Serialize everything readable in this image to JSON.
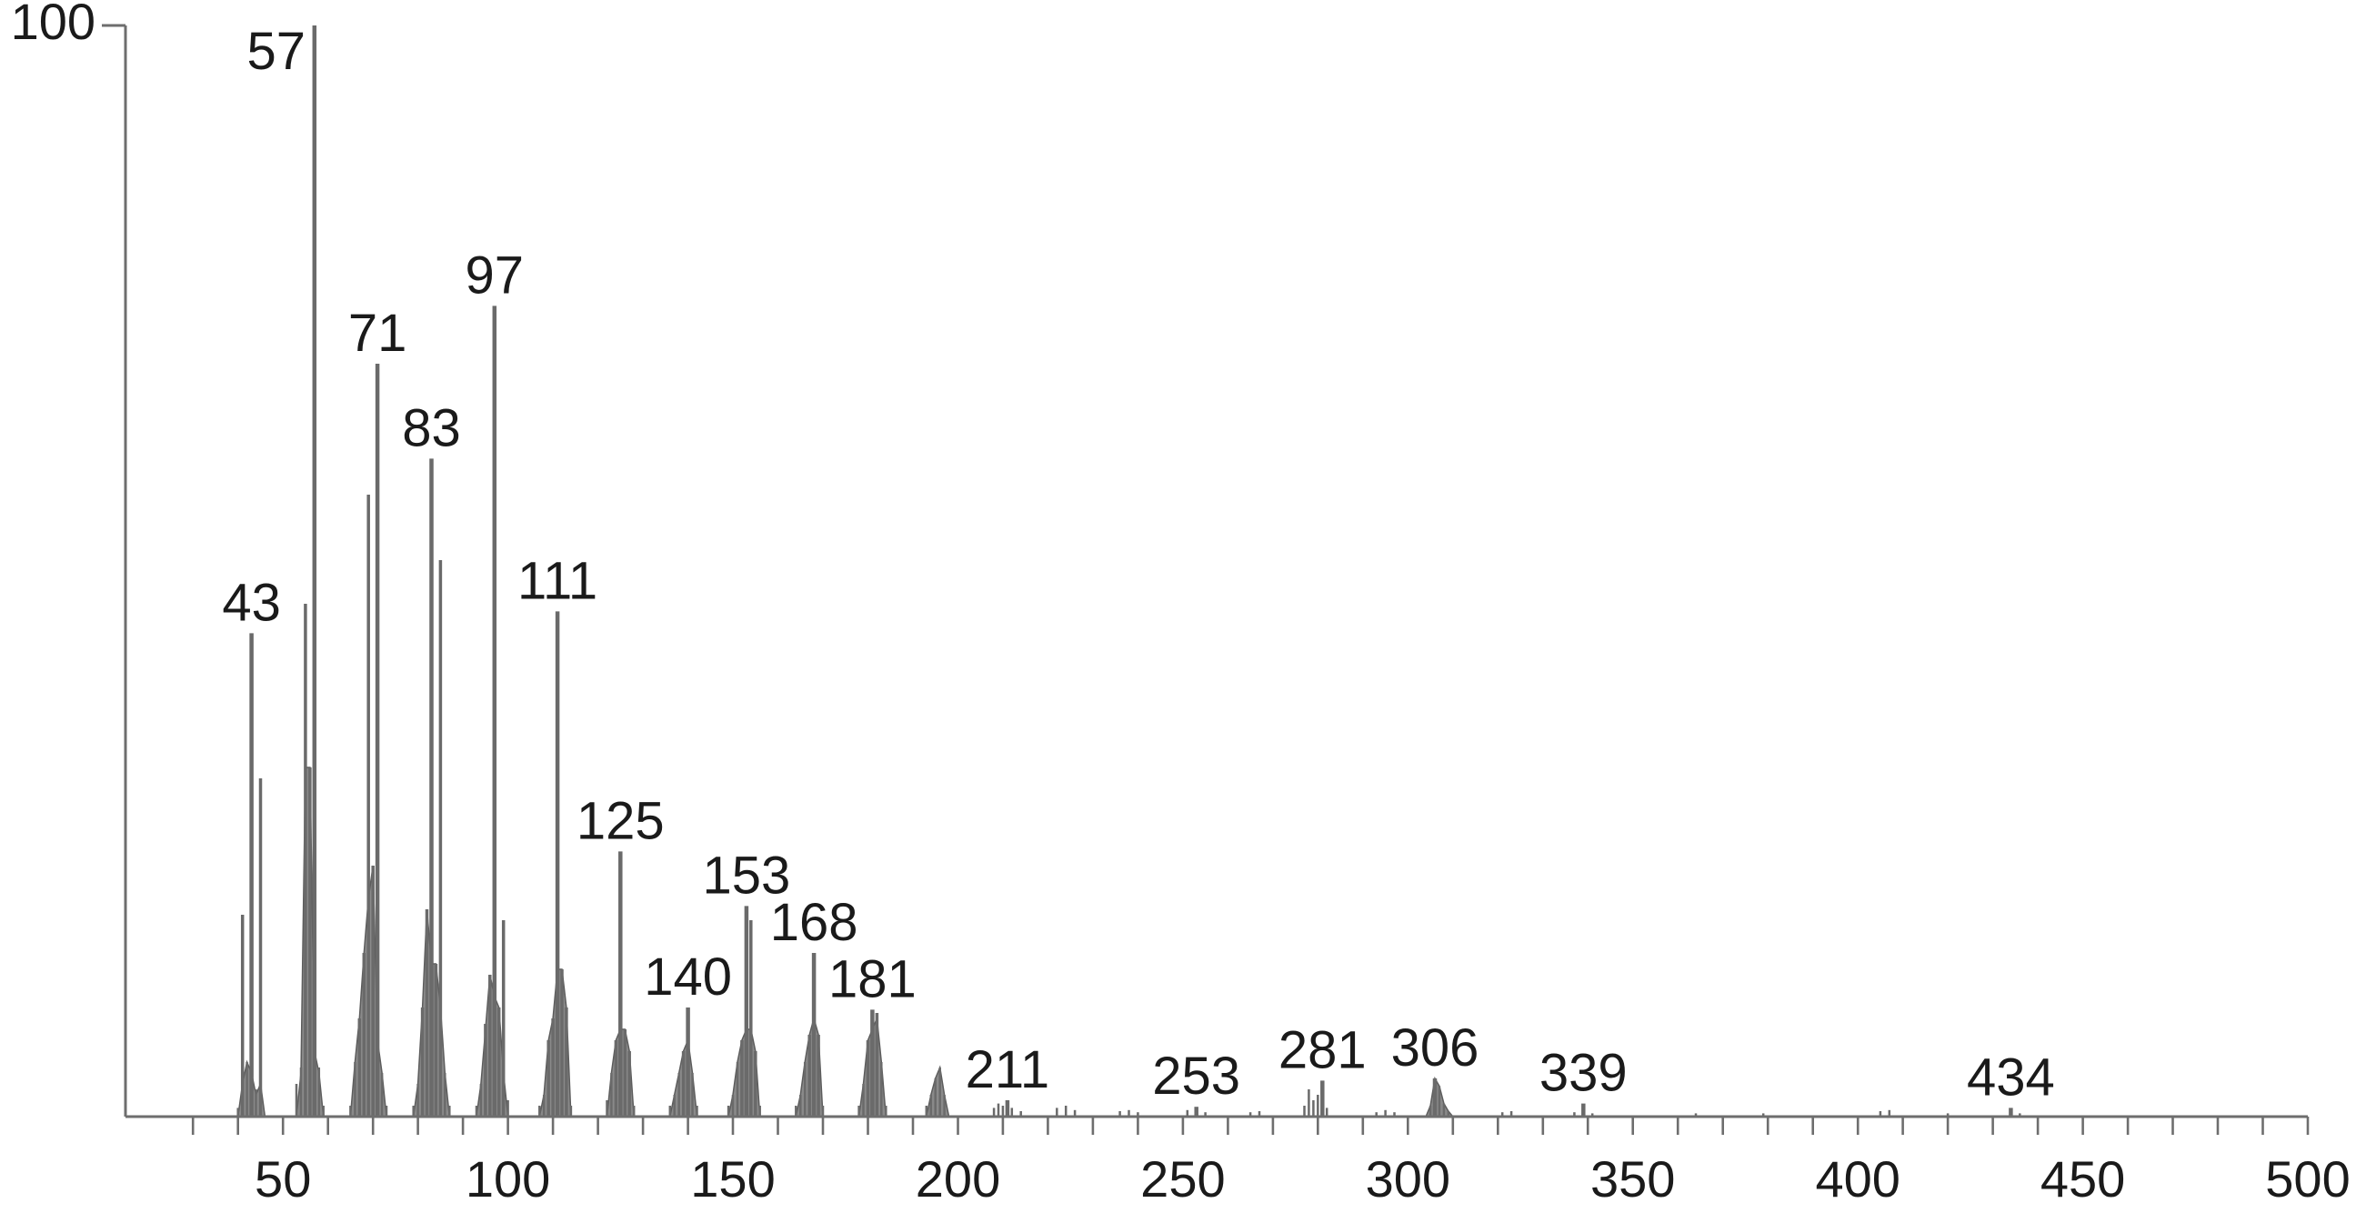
{
  "chart_data": {
    "type": "bar",
    "title": "",
    "xlabel": "",
    "ylabel": "",
    "xlim": [
      15,
      500
    ],
    "ylim": [
      0,
      100
    ],
    "y_ticks": [
      100
    ],
    "x_ticks": [
      50,
      100,
      150,
      200,
      250,
      300,
      350,
      400,
      450,
      500
    ],
    "x_minor_step": 10,
    "grid": false,
    "legend": "none",
    "peaks": [
      {
        "x": 40,
        "y": 0.8
      },
      {
        "x": 41,
        "y": 18.5
      },
      {
        "x": 42,
        "y": 5
      },
      {
        "x": 43,
        "y": 44.3,
        "label": "43"
      },
      {
        "x": 44,
        "y": 2.5
      },
      {
        "x": 45,
        "y": 31
      },
      {
        "x": 53,
        "y": 3
      },
      {
        "x": 54,
        "y": 4.5
      },
      {
        "x": 55,
        "y": 47
      },
      {
        "x": 56,
        "y": 32
      },
      {
        "x": 57,
        "y": 100,
        "label": "57"
      },
      {
        "x": 58,
        "y": 4.5
      },
      {
        "x": 59,
        "y": 1
      },
      {
        "x": 65,
        "y": 1
      },
      {
        "x": 66,
        "y": 5
      },
      {
        "x": 67,
        "y": 9
      },
      {
        "x": 68,
        "y": 15
      },
      {
        "x": 69,
        "y": 57
      },
      {
        "x": 70,
        "y": 23
      },
      {
        "x": 71,
        "y": 69,
        "label": "71"
      },
      {
        "x": 72,
        "y": 4
      },
      {
        "x": 73,
        "y": 1
      },
      {
        "x": 79,
        "y": 1
      },
      {
        "x": 80,
        "y": 3
      },
      {
        "x": 81,
        "y": 10
      },
      {
        "x": 82,
        "y": 19
      },
      {
        "x": 83,
        "y": 60.3,
        "label": "83"
      },
      {
        "x": 84,
        "y": 14
      },
      {
        "x": 85,
        "y": 51
      },
      {
        "x": 86,
        "y": 4
      },
      {
        "x": 87,
        "y": 1
      },
      {
        "x": 93,
        "y": 1
      },
      {
        "x": 94,
        "y": 3
      },
      {
        "x": 95,
        "y": 8.5
      },
      {
        "x": 96,
        "y": 13
      },
      {
        "x": 97,
        "y": 74.3,
        "label": "97"
      },
      {
        "x": 98,
        "y": 10
      },
      {
        "x": 99,
        "y": 18
      },
      {
        "x": 100,
        "y": 1.5
      },
      {
        "x": 107,
        "y": 1
      },
      {
        "x": 108,
        "y": 2
      },
      {
        "x": 109,
        "y": 7
      },
      {
        "x": 110,
        "y": 9
      },
      {
        "x": 111,
        "y": 46.3,
        "label": "111"
      },
      {
        "x": 112,
        "y": 13.5
      },
      {
        "x": 113,
        "y": 10
      },
      {
        "x": 114,
        "y": 1
      },
      {
        "x": 122,
        "y": 1.5
      },
      {
        "x": 123,
        "y": 4
      },
      {
        "x": 124,
        "y": 7
      },
      {
        "x": 125,
        "y": 24.3,
        "label": "125"
      },
      {
        "x": 126,
        "y": 8
      },
      {
        "x": 127,
        "y": 6
      },
      {
        "x": 128,
        "y": 1
      },
      {
        "x": 136,
        "y": 1
      },
      {
        "x": 137,
        "y": 2
      },
      {
        "x": 138,
        "y": 4
      },
      {
        "x": 139,
        "y": 6
      },
      {
        "x": 140,
        "y": 10,
        "label": "140"
      },
      {
        "x": 141,
        "y": 4
      },
      {
        "x": 142,
        "y": 1
      },
      {
        "x": 149,
        "y": 1
      },
      {
        "x": 150,
        "y": 2
      },
      {
        "x": 151,
        "y": 5
      },
      {
        "x": 152,
        "y": 7
      },
      {
        "x": 153,
        "y": 19.3,
        "label": "153"
      },
      {
        "x": 154,
        "y": 18
      },
      {
        "x": 155,
        "y": 6
      },
      {
        "x": 156,
        "y": 1
      },
      {
        "x": 164,
        "y": 1
      },
      {
        "x": 165,
        "y": 2
      },
      {
        "x": 166,
        "y": 5
      },
      {
        "x": 167,
        "y": 7.5
      },
      {
        "x": 168,
        "y": 15,
        "label": "168"
      },
      {
        "x": 169,
        "y": 7.5
      },
      {
        "x": 170,
        "y": 1
      },
      {
        "x": 178,
        "y": 1
      },
      {
        "x": 179,
        "y": 3
      },
      {
        "x": 180,
        "y": 7
      },
      {
        "x": 181,
        "y": 9.8,
        "label": "181"
      },
      {
        "x": 182,
        "y": 9.5
      },
      {
        "x": 183,
        "y": 5
      },
      {
        "x": 184,
        "y": 1
      },
      {
        "x": 193,
        "y": 1
      },
      {
        "x": 194,
        "y": 2
      },
      {
        "x": 195,
        "y": 3.5
      },
      {
        "x": 196,
        "y": 4.5
      },
      {
        "x": 197,
        "y": 2
      },
      {
        "x": 208,
        "y": 0.8
      },
      {
        "x": 209,
        "y": 1.2
      },
      {
        "x": 210,
        "y": 1
      },
      {
        "x": 211,
        "y": 1.5,
        "label": "211"
      },
      {
        "x": 212,
        "y": 0.8
      },
      {
        "x": 214,
        "y": 0.5
      },
      {
        "x": 222,
        "y": 0.8
      },
      {
        "x": 224,
        "y": 1
      },
      {
        "x": 226,
        "y": 0.6
      },
      {
        "x": 236,
        "y": 0.5
      },
      {
        "x": 238,
        "y": 0.6
      },
      {
        "x": 240,
        "y": 0.4
      },
      {
        "x": 251,
        "y": 0.6
      },
      {
        "x": 253,
        "y": 0.9,
        "label": "253"
      },
      {
        "x": 255,
        "y": 0.4
      },
      {
        "x": 265,
        "y": 0.4
      },
      {
        "x": 267,
        "y": 0.5
      },
      {
        "x": 277,
        "y": 1
      },
      {
        "x": 278,
        "y": 2.5
      },
      {
        "x": 279,
        "y": 1.5
      },
      {
        "x": 280,
        "y": 2
      },
      {
        "x": 281,
        "y": 3.3,
        "label": "281"
      },
      {
        "x": 282,
        "y": 0.8
      },
      {
        "x": 293,
        "y": 0.4
      },
      {
        "x": 295,
        "y": 0.6
      },
      {
        "x": 297,
        "y": 0.4
      },
      {
        "x": 305,
        "y": 1
      },
      {
        "x": 306,
        "y": 3.5,
        "label": "306"
      },
      {
        "x": 307,
        "y": 2.8
      },
      {
        "x": 308,
        "y": 1.2
      },
      {
        "x": 309,
        "y": 0.5
      },
      {
        "x": 321,
        "y": 0.4
      },
      {
        "x": 323,
        "y": 0.5
      },
      {
        "x": 337,
        "y": 0.4
      },
      {
        "x": 339,
        "y": 1.2,
        "label": "339"
      },
      {
        "x": 341,
        "y": 0.3
      },
      {
        "x": 364,
        "y": 0.3
      },
      {
        "x": 379,
        "y": 0.3
      },
      {
        "x": 405,
        "y": 0.5
      },
      {
        "x": 407,
        "y": 0.6
      },
      {
        "x": 420,
        "y": 0.3
      },
      {
        "x": 434,
        "y": 0.8,
        "label": "434"
      },
      {
        "x": 436,
        "y": 0.3
      }
    ],
    "clusters": [
      {
        "x": [
          40,
          41,
          42,
          43,
          44,
          45,
          46
        ],
        "y": [
          0,
          3,
          5,
          4,
          2,
          3,
          0
        ]
      },
      {
        "x": [
          53,
          54,
          55,
          56,
          57,
          58,
          59
        ],
        "y": [
          0,
          4,
          32,
          32,
          6,
          4,
          0
        ]
      },
      {
        "x": [
          65,
          66,
          67,
          68,
          69,
          70,
          71,
          72,
          73
        ],
        "y": [
          0,
          5,
          9,
          15,
          20,
          23,
          7,
          4,
          0
        ]
      },
      {
        "x": [
          79,
          80,
          81,
          82,
          83,
          84,
          85,
          86,
          87
        ],
        "y": [
          0,
          3,
          10,
          19,
          14,
          14,
          10,
          4,
          0
        ]
      },
      {
        "x": [
          93,
          94,
          95,
          96,
          97,
          98,
          99,
          100
        ],
        "y": [
          0,
          3,
          8,
          13,
          11,
          10,
          4,
          0
        ]
      },
      {
        "x": [
          107,
          108,
          109,
          110,
          111,
          112,
          113,
          114
        ],
        "y": [
          0,
          2,
          7,
          9,
          13.5,
          13.5,
          10,
          0
        ]
      },
      {
        "x": [
          122,
          123,
          124,
          125,
          126,
          127,
          128
        ],
        "y": [
          0,
          4,
          7,
          8,
          8,
          6,
          0
        ]
      },
      {
        "x": [
          136,
          137,
          138,
          139,
          140,
          141,
          142
        ],
        "y": [
          0,
          2,
          4,
          6,
          7,
          4,
          0
        ]
      },
      {
        "x": [
          149,
          150,
          151,
          152,
          153,
          154,
          155,
          156
        ],
        "y": [
          0,
          2,
          5,
          7,
          8,
          8,
          6,
          0
        ]
      },
      {
        "x": [
          164,
          165,
          166,
          167,
          168,
          169,
          170
        ],
        "y": [
          0,
          2,
          5,
          7.5,
          9,
          7.5,
          0
        ]
      },
      {
        "x": [
          178,
          179,
          180,
          181,
          182,
          183,
          184
        ],
        "y": [
          0,
          3,
          7,
          8,
          9,
          5,
          0
        ]
      },
      {
        "x": [
          193,
          194,
          195,
          196,
          197,
          198
        ],
        "y": [
          0,
          2,
          3.5,
          4.5,
          2,
          0
        ]
      },
      {
        "x": [
          304,
          305,
          306,
          307,
          308,
          309,
          310
        ],
        "y": [
          0,
          1,
          3.5,
          2.8,
          1.2,
          0.5,
          0
        ]
      }
    ]
  }
}
